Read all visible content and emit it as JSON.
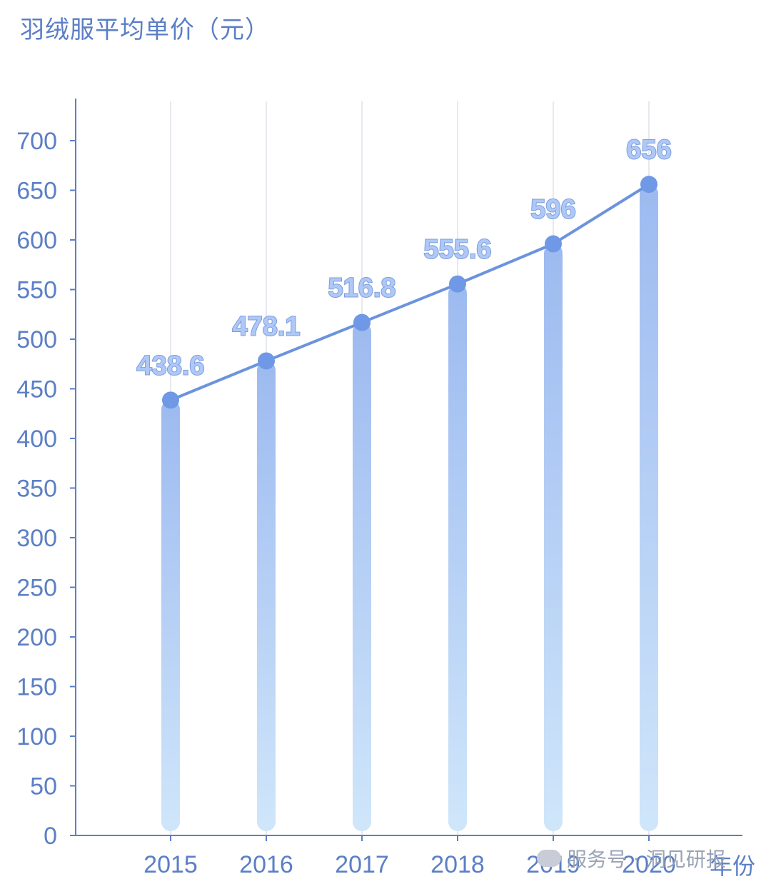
{
  "chart_data": {
    "type": "bar+line",
    "title": "",
    "ylabel": "羽绒服平均单价（元）",
    "xlabel": "年份",
    "categories": [
      "2015",
      "2016",
      "2017",
      "2018",
      "2019",
      "2020"
    ],
    "series": [
      {
        "values": [
          438.6,
          478.1,
          516.8,
          555.6,
          596,
          656
        ]
      }
    ],
    "data_labels": [
      "438.6",
      "478.1",
      "516.8",
      "555.6",
      "596",
      "656"
    ],
    "ylim": [
      0,
      700
    ],
    "yticks": [
      "0",
      "50",
      "100",
      "150",
      "200",
      "250",
      "300",
      "350",
      "400",
      "450",
      "500",
      "550",
      "600",
      "650",
      "700"
    ],
    "grid": "vertical",
    "colors": {
      "axis": "#5b7fc6",
      "tick_text": "#5b7fc6",
      "line": "#6b93de",
      "marker": "#6f98e6",
      "bar_top": "#9dbaf0",
      "bar_bottom": "#cfe6fa",
      "grid": "#e6e9ef",
      "label_fill": "#aec8f7",
      "label_stroke": "#ffffff"
    }
  },
  "watermark": {
    "text": "服务号 · 洞见研报"
  }
}
